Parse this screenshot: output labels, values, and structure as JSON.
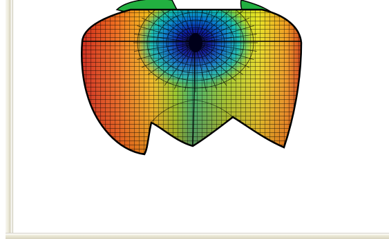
{
  "window": {
    "title": ""
  },
  "plot": {
    "kind": "3d-surface-mesh",
    "colormap": "jet",
    "colors": {
      "low": "#00008b",
      "mid": "#00c800",
      "high": "#c00000",
      "edge": "#000000"
    }
  }
}
